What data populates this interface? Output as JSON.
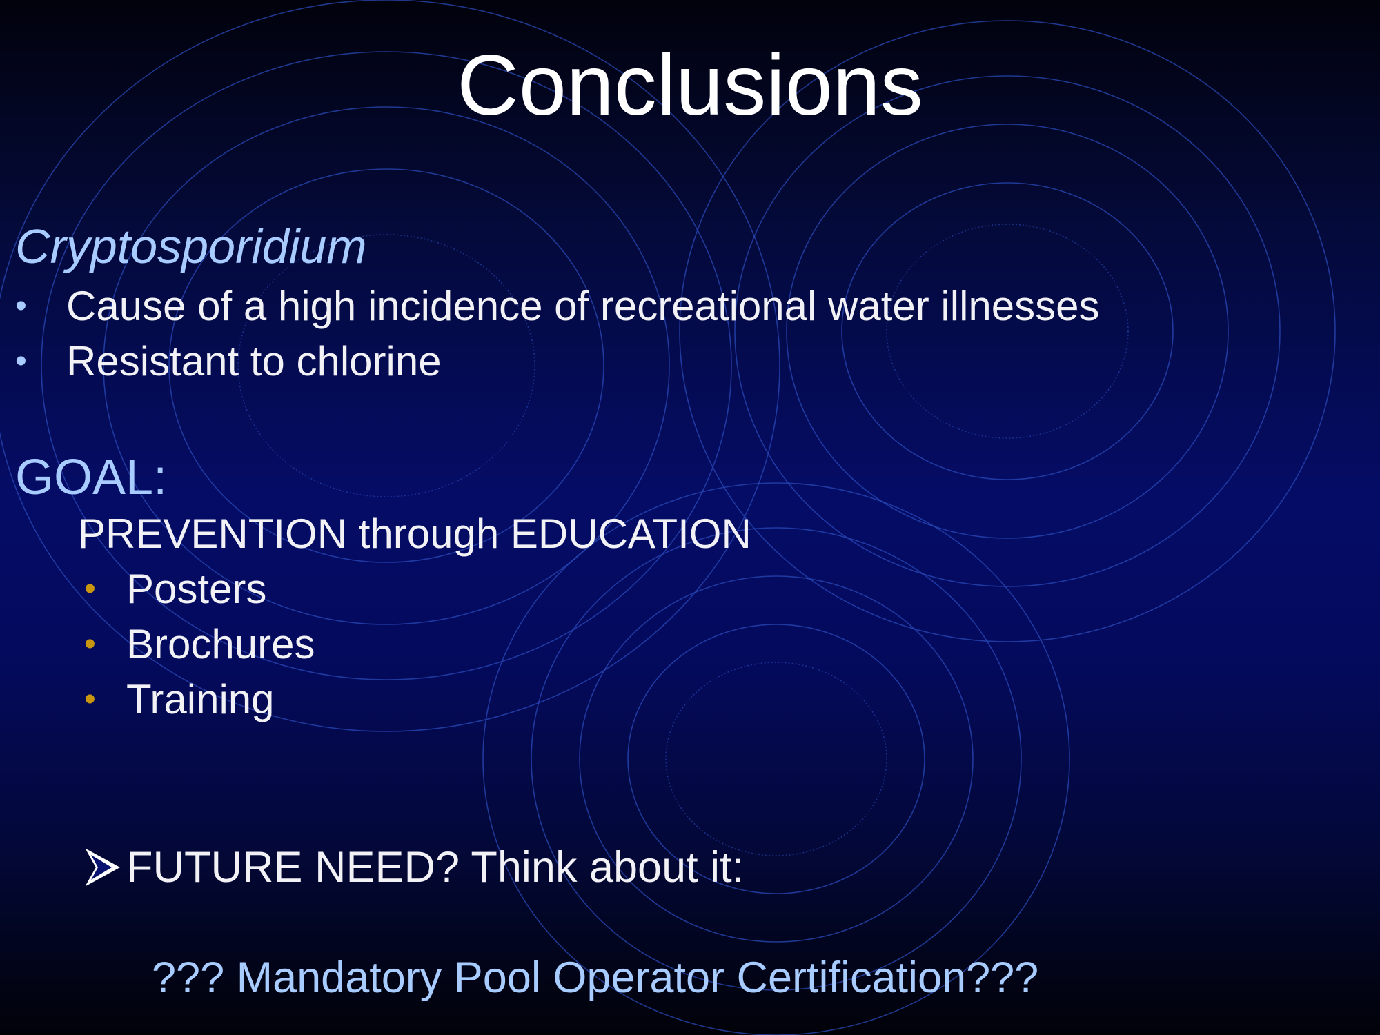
{
  "slide": {
    "title": "Conclusions",
    "section1": {
      "heading": "Cryptosporidium",
      "bullets": [
        "Cause of a high incidence of recreational water illnesses",
        "Resistant to chlorine"
      ]
    },
    "section2": {
      "heading": "GOAL:",
      "subheading": "PREVENTION through EDUCATION",
      "bullets": [
        "Posters",
        "Brochures",
        "Training"
      ]
    },
    "future": {
      "text": "FUTURE NEED?  Think about it:",
      "icon": "arrow-bullet-icon"
    },
    "certification": "??? Mandatory Pool Operator Certification???"
  },
  "colors": {
    "title": "#ffffff",
    "heading": "#a8ccff",
    "body": "#f1f1f6",
    "gold_bullet": "#c8960f",
    "ring": "#2a49b8"
  }
}
